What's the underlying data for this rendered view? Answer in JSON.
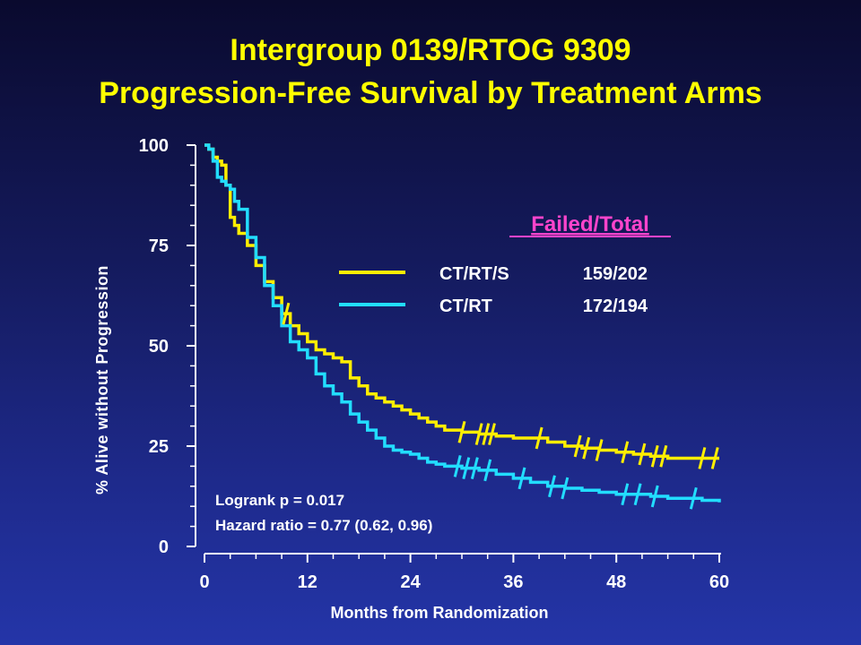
{
  "title_line1": "Intergroup 0139/RTOG 9309",
  "title_line2": "Progression-Free Survival by Treatment Arms",
  "chart_data": {
    "type": "line",
    "xlabel": "Months from Randomization",
    "ylabel": "% Alive without Progression",
    "xlim": [
      0,
      60
    ],
    "ylim": [
      0,
      100
    ],
    "xticks": [
      "0",
      "12",
      "24",
      "36",
      "48",
      "60"
    ],
    "yticks": [
      "0",
      "25",
      "50",
      "75",
      "100"
    ],
    "legend_header": "Failed/Total",
    "legend_position": "upper-right",
    "annotations": [
      "Logrank p = 0.017",
      "Hazard ratio = 0.77 (0.62, 0.96)"
    ],
    "series": [
      {
        "name": "CT/RT/S",
        "failed_total": "159/202",
        "color": "#ffee00",
        "x": [
          0,
          0.5,
          1,
          1.5,
          2,
          2.5,
          3,
          3.5,
          4,
          5,
          6,
          7,
          8,
          9,
          10,
          11,
          12,
          13,
          14,
          15,
          16,
          17,
          18,
          19,
          20,
          21,
          22,
          23,
          24,
          25,
          26,
          27,
          28,
          30,
          32,
          34,
          36,
          38,
          40,
          42,
          44,
          46,
          48,
          50,
          52,
          54,
          56,
          58,
          60
        ],
        "y": [
          100,
          99,
          97,
          96,
          95,
          90,
          82,
          80,
          78,
          75,
          70,
          66,
          62,
          58,
          55,
          53,
          51,
          49,
          48,
          47,
          46,
          42,
          40,
          38,
          37,
          36,
          35,
          34,
          33,
          32,
          31,
          30,
          29,
          28.5,
          28,
          27.5,
          27,
          27,
          26,
          25,
          24.5,
          24,
          23.5,
          23,
          22.5,
          22,
          22,
          22,
          22
        ]
      },
      {
        "name": "CT/RT",
        "failed_total": "172/194",
        "color": "#22ddff",
        "x": [
          0,
          0.5,
          1,
          1.5,
          2,
          2.5,
          3,
          3.5,
          4,
          5,
          6,
          7,
          8,
          9,
          10,
          11,
          12,
          13,
          14,
          15,
          16,
          17,
          18,
          19,
          20,
          21,
          22,
          23,
          24,
          25,
          26,
          27,
          28,
          30,
          32,
          34,
          36,
          38,
          40,
          42,
          44,
          46,
          48,
          50,
          52,
          54,
          56,
          58,
          60
        ],
        "y": [
          100,
          99,
          96,
          92,
          91,
          90,
          89,
          86,
          84,
          77,
          72,
          65,
          60,
          55,
          51,
          49,
          47,
          43,
          40,
          38,
          36,
          33,
          31,
          29,
          27,
          25,
          24,
          23.5,
          23,
          22,
          21,
          20.5,
          20,
          19.5,
          19,
          18,
          17,
          16,
          15,
          14.5,
          14,
          13.5,
          13,
          13,
          12.5,
          12,
          12,
          11.5,
          11
        ]
      }
    ],
    "censor_marks": [
      {
        "series": 0,
        "x": [
          9.5,
          30,
          32,
          32.8,
          33.5,
          39,
          43.5,
          44.5,
          46,
          49,
          51,
          52.5,
          53.5,
          58,
          59.5
        ]
      },
      {
        "series": 1,
        "x": [
          29.5,
          30.5,
          31.5,
          33,
          37,
          40.5,
          42,
          49,
          50.5,
          52.5,
          57
        ]
      }
    ]
  }
}
